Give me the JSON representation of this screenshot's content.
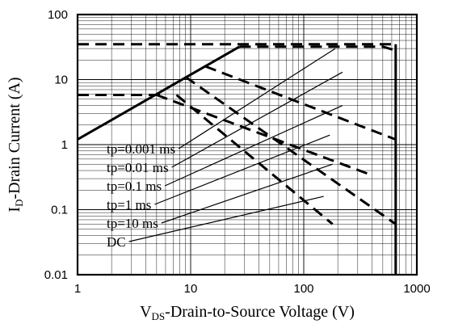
{
  "chart_data": {
    "type": "line",
    "title": "",
    "xlabel": {
      "main": "V",
      "sub": "DS",
      "rest": "-Drain-to-Source Voltage (V)"
    },
    "ylabel": {
      "main": "I",
      "sub": "D",
      "rest": "-Drain Current (A)"
    },
    "x_scale": "log",
    "y_scale": "log",
    "xlim": [
      1,
      1000
    ],
    "ylim": [
      0.01,
      100
    ],
    "x_ticks": [
      1,
      10,
      100,
      1000
    ],
    "x_tick_labels": [
      "1",
      "10",
      "100",
      "1000"
    ],
    "y_ticks": [
      0.01,
      0.1,
      1,
      10,
      100
    ],
    "y_tick_labels": [
      "0.01",
      "0.1",
      "1",
      "10",
      "100"
    ],
    "grid": true,
    "rds_limit": {
      "x": [
        1,
        27
      ],
      "y": [
        1.2,
        32
      ]
    },
    "series": [
      {
        "name": "tp=0.001 ms",
        "x": [
          27,
          500,
          650
        ],
        "y": [
          32,
          32,
          28
        ],
        "label_point": {
          "x": 190,
          "y": 30
        }
      },
      {
        "name": "tp=0.01 ms",
        "x": [
          13.5,
          650
        ],
        "y": [
          16,
          1.2
        ],
        "label_point": {
          "x": 220,
          "y": 13
        }
      },
      {
        "name": "tp=0.1 ms",
        "x": [
          9,
          650
        ],
        "y": [
          11,
          0.06
        ],
        "label_point": {
          "x": 220,
          "y": 4
        }
      },
      {
        "name": "tp=1 ms",
        "x": [
          5,
          380
        ],
        "y": [
          5.8,
          0.35
        ],
        "label_point": {
          "x": 170,
          "y": 1.4
        }
      },
      {
        "name": "tp=10 ms",
        "x": [
          7.5,
          180
        ],
        "y": [
          5.8,
          0.06
        ],
        "label_point": {
          "x": 180,
          "y": 0.5
        }
      },
      {
        "name": "DC",
        "x": [
          1,
          650,
          650
        ],
        "y": [
          35,
          35,
          0.01
        ],
        "dc_small": {
          "x": [
            1,
            6
          ],
          "y": [
            5.8,
            5.8
          ]
        },
        "label_point": {
          "x": 150,
          "y": 0.16
        }
      }
    ],
    "legend": [
      "tp=0.001 ms",
      "tp=0.01 ms",
      "tp=0.1 ms",
      "tp=1 ms",
      "tp=10 ms",
      "DC"
    ]
  }
}
